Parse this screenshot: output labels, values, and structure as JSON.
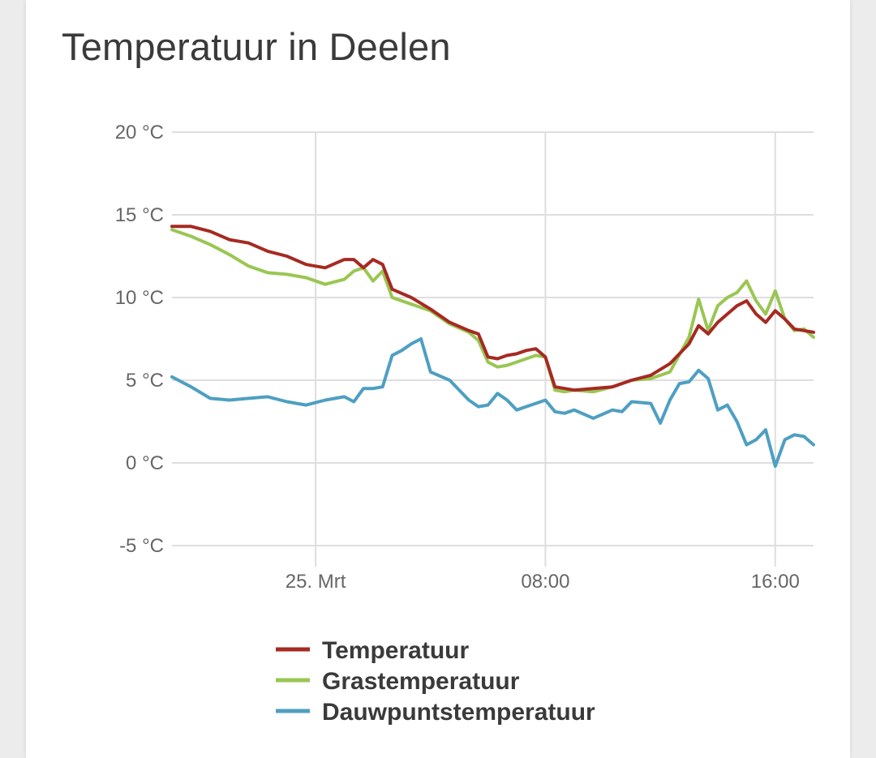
{
  "title": "Temperatuur in Deelen",
  "colors": {
    "temperatuur": "#a52a22",
    "grastemperatuur": "#9ac653",
    "dauwpunt": "#4e9fc2"
  },
  "chart_data": {
    "type": "line",
    "title": "Temperatuur in Deelen",
    "xlabel": "",
    "ylabel": "",
    "ylim": [
      -5,
      20
    ],
    "xlim": [
      "2024-03-24T19:00",
      "2024-03-25T17:20"
    ],
    "y_ticks": [
      -5,
      0,
      5,
      10,
      15,
      20
    ],
    "y_tick_labels": [
      "-5 °C",
      "0 °C",
      "5 °C",
      "10 °C",
      "15 °C",
      "20 °C"
    ],
    "x_ticks": [
      "2024-03-25T00:00",
      "2024-03-25T08:00",
      "2024-03-25T16:00"
    ],
    "x_tick_labels": [
      "25. Mrt",
      "08:00",
      "16:00"
    ],
    "grid": true,
    "legend_position": "bottom",
    "series": [
      {
        "name": "Temperatuur",
        "color": "#a52a22",
        "points": [
          [
            "2024-03-24T19:00",
            14.3
          ],
          [
            "2024-03-24T19:40",
            14.3
          ],
          [
            "2024-03-24T20:20",
            14.0
          ],
          [
            "2024-03-24T21:00",
            13.5
          ],
          [
            "2024-03-24T21:40",
            13.3
          ],
          [
            "2024-03-24T22:20",
            12.8
          ],
          [
            "2024-03-24T23:00",
            12.5
          ],
          [
            "2024-03-24T23:40",
            12.0
          ],
          [
            "2024-03-25T00:20",
            11.8
          ],
          [
            "2024-03-25T01:00",
            12.3
          ],
          [
            "2024-03-25T01:20",
            12.3
          ],
          [
            "2024-03-25T01:40",
            11.8
          ],
          [
            "2024-03-25T02:00",
            12.3
          ],
          [
            "2024-03-25T02:20",
            12.0
          ],
          [
            "2024-03-25T02:40",
            10.5
          ],
          [
            "2024-03-25T03:20",
            10.0
          ],
          [
            "2024-03-25T04:00",
            9.3
          ],
          [
            "2024-03-25T04:40",
            8.5
          ],
          [
            "2024-03-25T05:20",
            8.0
          ],
          [
            "2024-03-25T05:40",
            7.8
          ],
          [
            "2024-03-25T06:00",
            6.4
          ],
          [
            "2024-03-25T06:20",
            6.3
          ],
          [
            "2024-03-25T06:40",
            6.5
          ],
          [
            "2024-03-25T07:00",
            6.6
          ],
          [
            "2024-03-25T07:20",
            6.8
          ],
          [
            "2024-03-25T07:40",
            6.9
          ],
          [
            "2024-03-25T08:00",
            6.4
          ],
          [
            "2024-03-25T08:20",
            4.6
          ],
          [
            "2024-03-25T08:40",
            4.5
          ],
          [
            "2024-03-25T09:00",
            4.4
          ],
          [
            "2024-03-25T09:40",
            4.5
          ],
          [
            "2024-03-25T10:20",
            4.6
          ],
          [
            "2024-03-25T11:00",
            5.0
          ],
          [
            "2024-03-25T11:40",
            5.3
          ],
          [
            "2024-03-25T12:20",
            6.0
          ],
          [
            "2024-03-25T13:00",
            7.2
          ],
          [
            "2024-03-25T13:20",
            8.3
          ],
          [
            "2024-03-25T13:40",
            7.8
          ],
          [
            "2024-03-25T14:00",
            8.5
          ],
          [
            "2024-03-25T14:20",
            9.0
          ],
          [
            "2024-03-25T14:40",
            9.5
          ],
          [
            "2024-03-25T15:00",
            9.8
          ],
          [
            "2024-03-25T15:20",
            9.0
          ],
          [
            "2024-03-25T15:40",
            8.5
          ],
          [
            "2024-03-25T16:00",
            9.2
          ],
          [
            "2024-03-25T16:20",
            8.7
          ],
          [
            "2024-03-25T16:40",
            8.1
          ],
          [
            "2024-03-25T17:00",
            8.0
          ],
          [
            "2024-03-25T17:20",
            7.9
          ]
        ]
      },
      {
        "name": "Grastemperatuur",
        "color": "#9ac653",
        "points": [
          [
            "2024-03-24T19:00",
            14.1
          ],
          [
            "2024-03-24T19:40",
            13.7
          ],
          [
            "2024-03-24T20:20",
            13.2
          ],
          [
            "2024-03-24T21:00",
            12.6
          ],
          [
            "2024-03-24T21:40",
            11.9
          ],
          [
            "2024-03-24T22:20",
            11.5
          ],
          [
            "2024-03-24T23:00",
            11.4
          ],
          [
            "2024-03-24T23:40",
            11.2
          ],
          [
            "2024-03-25T00:20",
            10.8
          ],
          [
            "2024-03-25T01:00",
            11.1
          ],
          [
            "2024-03-25T01:20",
            11.6
          ],
          [
            "2024-03-25T01:40",
            11.8
          ],
          [
            "2024-03-25T02:00",
            11.0
          ],
          [
            "2024-03-25T02:20",
            11.6
          ],
          [
            "2024-03-25T02:40",
            10.0
          ],
          [
            "2024-03-25T03:20",
            9.6
          ],
          [
            "2024-03-25T04:00",
            9.2
          ],
          [
            "2024-03-25T04:40",
            8.4
          ],
          [
            "2024-03-25T05:20",
            7.9
          ],
          [
            "2024-03-25T05:40",
            7.4
          ],
          [
            "2024-03-25T06:00",
            6.1
          ],
          [
            "2024-03-25T06:20",
            5.8
          ],
          [
            "2024-03-25T06:40",
            5.9
          ],
          [
            "2024-03-25T07:00",
            6.1
          ],
          [
            "2024-03-25T07:20",
            6.3
          ],
          [
            "2024-03-25T07:40",
            6.5
          ],
          [
            "2024-03-25T08:00",
            6.4
          ],
          [
            "2024-03-25T08:20",
            4.4
          ],
          [
            "2024-03-25T08:40",
            4.3
          ],
          [
            "2024-03-25T09:00",
            4.4
          ],
          [
            "2024-03-25T09:40",
            4.3
          ],
          [
            "2024-03-25T10:20",
            4.6
          ],
          [
            "2024-03-25T11:00",
            5.0
          ],
          [
            "2024-03-25T11:40",
            5.1
          ],
          [
            "2024-03-25T12:20",
            5.5
          ],
          [
            "2024-03-25T13:00",
            7.6
          ],
          [
            "2024-03-25T13:20",
            9.9
          ],
          [
            "2024-03-25T13:40",
            8.0
          ],
          [
            "2024-03-25T14:00",
            9.5
          ],
          [
            "2024-03-25T14:20",
            10.0
          ],
          [
            "2024-03-25T14:40",
            10.3
          ],
          [
            "2024-03-25T15:00",
            11.0
          ],
          [
            "2024-03-25T15:20",
            9.8
          ],
          [
            "2024-03-25T15:40",
            9.0
          ],
          [
            "2024-03-25T16:00",
            10.4
          ],
          [
            "2024-03-25T16:20",
            8.7
          ],
          [
            "2024-03-25T16:40",
            8.0
          ],
          [
            "2024-03-25T17:00",
            8.1
          ],
          [
            "2024-03-25T17:20",
            7.6
          ]
        ]
      },
      {
        "name": "Dauwpuntstemperatuur",
        "color": "#4e9fc2",
        "points": [
          [
            "2024-03-24T19:00",
            5.2
          ],
          [
            "2024-03-24T19:40",
            4.6
          ],
          [
            "2024-03-24T20:20",
            3.9
          ],
          [
            "2024-03-24T21:00",
            3.8
          ],
          [
            "2024-03-24T21:40",
            3.9
          ],
          [
            "2024-03-24T22:20",
            4.0
          ],
          [
            "2024-03-24T23:00",
            3.7
          ],
          [
            "2024-03-24T23:40",
            3.5
          ],
          [
            "2024-03-25T00:20",
            3.8
          ],
          [
            "2024-03-25T01:00",
            4.0
          ],
          [
            "2024-03-25T01:20",
            3.7
          ],
          [
            "2024-03-25T01:40",
            4.5
          ],
          [
            "2024-03-25T02:00",
            4.5
          ],
          [
            "2024-03-25T02:20",
            4.6
          ],
          [
            "2024-03-25T02:40",
            6.5
          ],
          [
            "2024-03-25T03:00",
            6.8
          ],
          [
            "2024-03-25T03:20",
            7.2
          ],
          [
            "2024-03-25T03:40",
            7.5
          ],
          [
            "2024-03-25T04:00",
            5.5
          ],
          [
            "2024-03-25T04:40",
            5.0
          ],
          [
            "2024-03-25T05:20",
            3.8
          ],
          [
            "2024-03-25T05:40",
            3.4
          ],
          [
            "2024-03-25T06:00",
            3.5
          ],
          [
            "2024-03-25T06:20",
            4.2
          ],
          [
            "2024-03-25T06:40",
            3.8
          ],
          [
            "2024-03-25T07:00",
            3.2
          ],
          [
            "2024-03-25T07:20",
            3.4
          ],
          [
            "2024-03-25T07:40",
            3.6
          ],
          [
            "2024-03-25T08:00",
            3.8
          ],
          [
            "2024-03-25T08:20",
            3.1
          ],
          [
            "2024-03-25T08:40",
            3.0
          ],
          [
            "2024-03-25T09:00",
            3.2
          ],
          [
            "2024-03-25T09:40",
            2.7
          ],
          [
            "2024-03-25T10:20",
            3.2
          ],
          [
            "2024-03-25T10:40",
            3.1
          ],
          [
            "2024-03-25T11:00",
            3.7
          ],
          [
            "2024-03-25T11:40",
            3.6
          ],
          [
            "2024-03-25T12:00",
            2.4
          ],
          [
            "2024-03-25T12:20",
            3.8
          ],
          [
            "2024-03-25T12:40",
            4.8
          ],
          [
            "2024-03-25T13:00",
            4.9
          ],
          [
            "2024-03-25T13:20",
            5.6
          ],
          [
            "2024-03-25T13:40",
            5.1
          ],
          [
            "2024-03-25T14:00",
            3.2
          ],
          [
            "2024-03-25T14:20",
            3.5
          ],
          [
            "2024-03-25T14:40",
            2.5
          ],
          [
            "2024-03-25T15:00",
            1.1
          ],
          [
            "2024-03-25T15:20",
            1.4
          ],
          [
            "2024-03-25T15:40",
            2.0
          ],
          [
            "2024-03-25T16:00",
            -0.2
          ],
          [
            "2024-03-25T16:20",
            1.4
          ],
          [
            "2024-03-25T16:40",
            1.7
          ],
          [
            "2024-03-25T17:00",
            1.6
          ],
          [
            "2024-03-25T17:20",
            1.1
          ]
        ]
      }
    ]
  }
}
